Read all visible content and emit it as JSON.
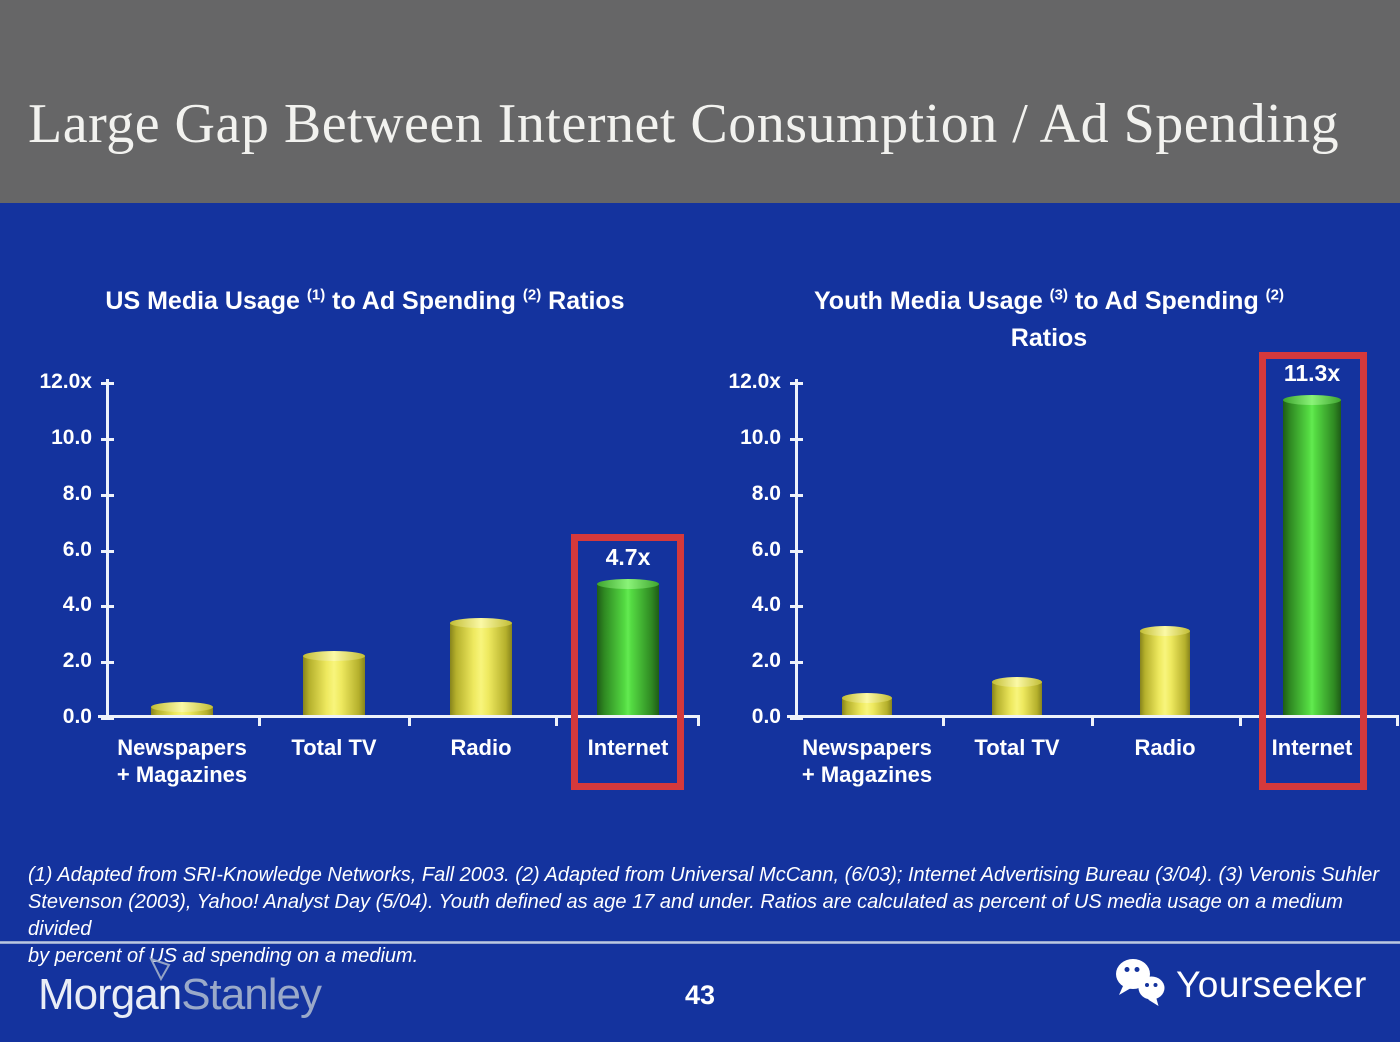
{
  "slide": {
    "title": "Large Gap Between Internet Consumption / Ad Spending",
    "background_color": "#14339e",
    "header_color": "#666667",
    "highlight_color": "#d5393b"
  },
  "footnote": {
    "lines": [
      "(1) Adapted from SRI-Knowledge Networks, Fall 2003.  (2) Adapted from Universal McCann, (6/03); Internet Advertising Bureau (3/04). (3) Veronis Suhler",
      "Stevenson (2003), Yahoo! Analyst Day (5/04).  Youth defined as age 17 and under.  Ratios are calculated as percent of US media usage on a medium divided",
      "by percent of US ad spending on a medium."
    ]
  },
  "footer": {
    "brand_part1": "Morgan",
    "brand_part2": "Stanley",
    "page_number": "43",
    "watermark_label": "Yourseeker"
  },
  "chart_data": [
    {
      "type": "bar",
      "title": "US Media Usage (1) to Ad Spending (2) Ratios",
      "title_lines": [
        [
          {
            "t": "US Media Usage "
          },
          {
            "sup": "(1)"
          },
          {
            "t": " to Ad Spending "
          },
          {
            "sup": "(2)"
          },
          {
            "t": " Ratios"
          }
        ]
      ],
      "categories": [
        "Newspapers + Magazines",
        "Total TV",
        "Radio",
        "Internet"
      ],
      "category_label_lines": [
        [
          "Newspapers",
          "+ Magazines"
        ],
        [
          "Total TV"
        ],
        [
          "Radio"
        ],
        [
          "Internet"
        ]
      ],
      "values": [
        0.3,
        2.1,
        3.3,
        4.7
      ],
      "bar_labels": [
        null,
        null,
        null,
        "4.7x"
      ],
      "bar_colors": [
        "yellow",
        "yellow",
        "yellow",
        "green"
      ],
      "y_ticks": [
        {
          "v": 12,
          "label": "12.0x"
        },
        {
          "v": 10,
          "label": "10.0"
        },
        {
          "v": 8,
          "label": "8.0"
        },
        {
          "v": 6,
          "label": "6.0"
        },
        {
          "v": 4,
          "label": "4.0"
        },
        {
          "v": 2,
          "label": "2.0"
        },
        {
          "v": 0,
          "label": "0.0"
        }
      ],
      "ylim": [
        0,
        12
      ],
      "xlabel": "",
      "ylabel": "",
      "grid": false,
      "legend": false,
      "highlighted_category": "Internet"
    },
    {
      "type": "bar",
      "title": "Youth Media Usage (3) to Ad Spending (2) Ratios",
      "title_lines": [
        [
          {
            "t": "Youth Media Usage "
          },
          {
            "sup": "(3)"
          },
          {
            "t": " to Ad Spending "
          },
          {
            "sup": "(2)"
          }
        ],
        [
          {
            "t": "Ratios"
          }
        ]
      ],
      "categories": [
        "Newspapers + Magazines",
        "Total TV",
        "Radio",
        "Internet"
      ],
      "category_label_lines": [
        [
          "Newspapers",
          "+ Magazines"
        ],
        [
          "Total TV"
        ],
        [
          "Radio"
        ],
        [
          "Internet"
        ]
      ],
      "values": [
        0.6,
        1.2,
        3.0,
        11.3
      ],
      "bar_labels": [
        null,
        null,
        null,
        "11.3x"
      ],
      "bar_colors": [
        "yellow",
        "yellow",
        "yellow",
        "green"
      ],
      "y_ticks": [
        {
          "v": 12,
          "label": "12.0x"
        },
        {
          "v": 10,
          "label": "10.0"
        },
        {
          "v": 8,
          "label": "8.0"
        },
        {
          "v": 6,
          "label": "6.0"
        },
        {
          "v": 4,
          "label": "4.0"
        },
        {
          "v": 2,
          "label": "2.0"
        },
        {
          "v": 0,
          "label": "0.0"
        }
      ],
      "ylim": [
        0,
        12
      ],
      "xlabel": "",
      "ylabel": "",
      "grid": false,
      "legend": false,
      "highlighted_category": "Internet"
    }
  ]
}
